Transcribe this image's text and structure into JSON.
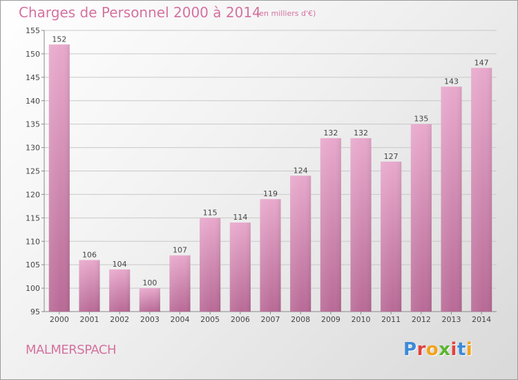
{
  "header": {
    "title": "Charges de Personnel 2000 à 2014",
    "subtitle": "(en milliers d'€)"
  },
  "footer": {
    "commune": "MALMERSPACH",
    "logo_text": "Proxiti",
    "logo_colors": [
      "#3b8ad9",
      "#e0433f",
      "#f2a31b",
      "#5cb531",
      "#e0433f",
      "#3b8ad9",
      "#f2a31b"
    ]
  },
  "colors": {
    "accent": "#d4729f",
    "bar_top": "#e8a9cc",
    "bar_bottom": "#b86a96",
    "grid": "#c8c8c8"
  },
  "chart_data": {
    "type": "bar",
    "categories": [
      "2000",
      "2001",
      "2002",
      "2003",
      "2004",
      "2005",
      "2006",
      "2007",
      "2008",
      "2009",
      "2010",
      "2011",
      "2012",
      "2013",
      "2014"
    ],
    "values": [
      152,
      106,
      104,
      100,
      107,
      115,
      114,
      119,
      124,
      132,
      132,
      127,
      135,
      143,
      147
    ],
    "ylim": [
      95,
      155
    ],
    "yticks": [
      95,
      100,
      105,
      110,
      115,
      120,
      125,
      130,
      135,
      140,
      145,
      150,
      155
    ],
    "grid": true
  }
}
